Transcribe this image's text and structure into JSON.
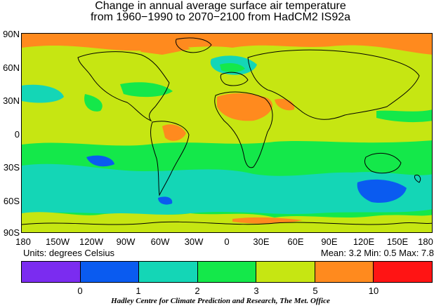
{
  "title": {
    "line1": "Change in annual average surface air temperature",
    "line2": "from 1960−1990 to 2070−2100 from HadCM2 IS92a"
  },
  "axes": {
    "lat_labels": [
      "90N",
      "60N",
      "30N",
      "0",
      "30S",
      "60S",
      "90S"
    ],
    "lon_labels": [
      "180",
      "150W",
      "120W",
      "90W",
      "60W",
      "30W",
      "0",
      "30E",
      "60E",
      "90E",
      "120E",
      "150E",
      "180"
    ]
  },
  "units_text": "Units: degrees Celsius",
  "stats_text": "Mean:  3.2 Min:  0.5 Max:  7.8",
  "colorbar": {
    "colors": [
      "#7b2cf0",
      "#0a5bf0",
      "#14d6b6",
      "#14e84a",
      "#c6e612",
      "#ff8a1e",
      "#ff1414"
    ],
    "labels": [
      "0",
      "1",
      "2",
      "3",
      "5",
      "10"
    ]
  },
  "map_legend": {
    "bins": [
      {
        "range": "< 0",
        "color": "#7b2cf0"
      },
      {
        "range": "0 - 1",
        "color": "#0a5bf0"
      },
      {
        "range": "1 - 2",
        "color": "#14d6b6"
      },
      {
        "range": "2 - 3",
        "color": "#14e84a"
      },
      {
        "range": "3 - 5",
        "color": "#c6e612"
      },
      {
        "range": "5 - 10",
        "color": "#ff8a1e"
      },
      {
        "range": "> 10",
        "color": "#ff1414"
      }
    ]
  },
  "footer": "Hadley Centre for Climate Prediction and Research, The Met. Office"
}
